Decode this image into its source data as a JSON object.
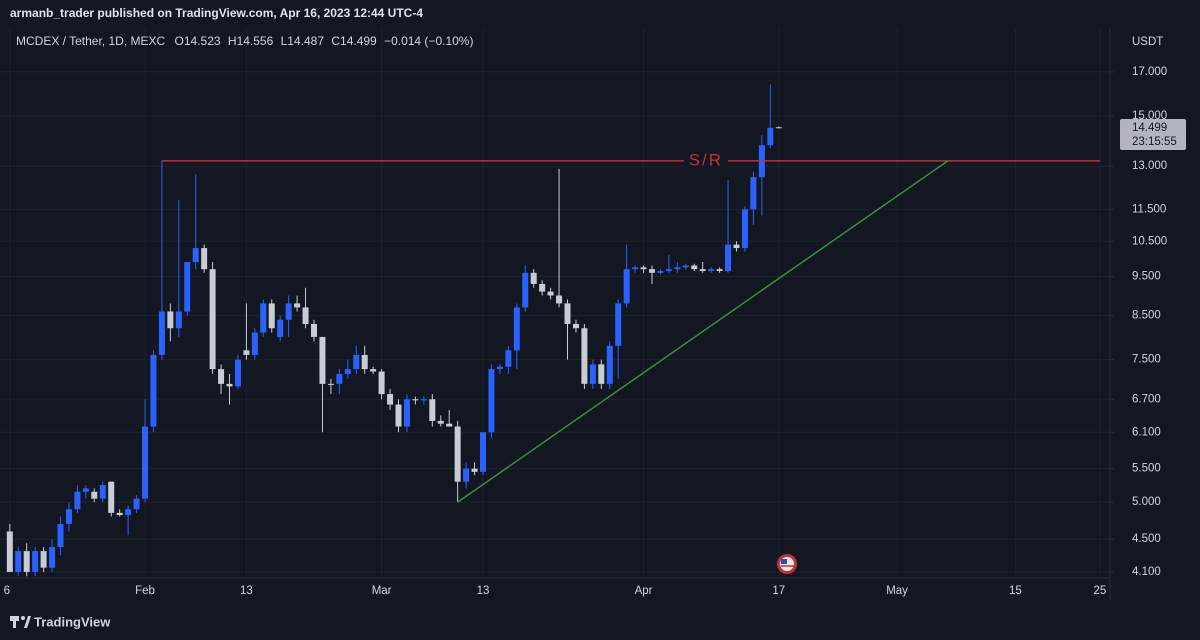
{
  "attribution": "armanb_trader published on TradingView.com, Apr 16, 2023 12:44 UTC-4",
  "header": {
    "symbol": "MCDEX / Tether, 1D, MEXC",
    "ohlc_labels": [
      "O",
      "H",
      "L",
      "C"
    ],
    "change": "−0.014 (−0.10%)"
  },
  "currency": "USDT",
  "countdown": "23:15:55",
  "footer": "TradingView",
  "chart_data": {
    "type": "candlestick",
    "log_scale": true,
    "grid": true,
    "up_color": "#2962ff",
    "down_color": "#c9ccd4",
    "x": [
      16,
      17,
      18,
      19,
      20,
      21,
      22,
      23,
      24,
      25,
      26,
      27,
      28,
      29,
      30,
      31,
      32,
      33,
      34,
      35,
      36,
      37,
      38,
      39,
      40,
      41,
      42,
      43,
      44,
      45,
      46,
      47,
      48,
      49,
      50,
      51,
      52,
      53,
      54,
      55,
      56,
      57,
      58,
      59,
      60,
      61,
      62,
      63,
      64,
      65,
      66,
      67,
      68,
      69,
      70,
      71,
      72,
      73,
      74,
      75,
      76,
      77,
      78,
      79,
      80,
      81,
      82,
      83,
      84,
      85,
      86,
      87,
      88,
      89,
      90,
      91,
      92,
      93,
      94,
      95,
      96,
      97,
      98,
      99,
      100,
      101,
      102,
      103,
      104,
      105,
      106,
      107
    ],
    "open": [
      4.6,
      4.1,
      4.35,
      4.1,
      4.35,
      4.15,
      4.4,
      4.7,
      4.9,
      5.15,
      5.15,
      5.05,
      5.3,
      4.85,
      4.82,
      4.9,
      5.05,
      6.2,
      7.6,
      8.6,
      8.2,
      8.6,
      9.9,
      10.3,
      9.7,
      7.3,
      7.0,
      6.95,
      7.7,
      7.6,
      8.1,
      8.8,
      8.0,
      8.4,
      8.8,
      8.7,
      8.3,
      8.0,
      7.0,
      7.0,
      7.2,
      7.3,
      7.6,
      7.3,
      7.25,
      6.8,
      6.6,
      6.2,
      6.7,
      6.68,
      6.7,
      6.3,
      6.25,
      6.2,
      5.3,
      5.5,
      5.45,
      6.1,
      7.3,
      7.35,
      7.7,
      8.7,
      9.6,
      9.3,
      9.1,
      9.0,
      8.8,
      8.3,
      8.2,
      7.0,
      7.4,
      7.0,
      7.8,
      8.8,
      9.7,
      9.75,
      9.7,
      9.6,
      9.65,
      9.7,
      9.75,
      9.8,
      9.7,
      9.65,
      9.7,
      9.65,
      10.4,
      10.3,
      11.5,
      12.6,
      13.8,
      14.523
    ],
    "high": [
      4.7,
      4.4,
      4.45,
      4.4,
      4.4,
      4.5,
      4.8,
      5.0,
      5.25,
      5.25,
      5.2,
      5.3,
      5.3,
      4.9,
      4.95,
      5.1,
      6.7,
      7.7,
      13.2,
      8.8,
      11.8,
      9.9,
      12.7,
      10.4,
      9.9,
      7.4,
      7.2,
      7.6,
      8.8,
      8.2,
      8.9,
      8.9,
      8.5,
      9.0,
      9.0,
      9.2,
      8.4,
      8.0,
      7.1,
      7.3,
      7.5,
      7.8,
      7.8,
      7.35,
      7.3,
      6.9,
      6.7,
      6.8,
      6.75,
      6.75,
      6.8,
      6.4,
      6.5,
      6.3,
      5.6,
      5.6,
      6.1,
      7.4,
      7.4,
      7.8,
      8.8,
      9.8,
      9.7,
      9.4,
      9.2,
      12.9,
      8.9,
      8.4,
      8.3,
      7.5,
      7.5,
      7.9,
      8.9,
      10.4,
      9.8,
      9.8,
      9.8,
      9.7,
      10.1,
      9.9,
      9.85,
      9.85,
      9.9,
      9.75,
      9.75,
      12.5,
      10.5,
      11.6,
      12.8,
      14.2,
      16.4,
      14.556
    ],
    "low": [
      4.1,
      4.05,
      4.05,
      4.05,
      4.1,
      4.1,
      4.3,
      4.6,
      4.85,
      5.05,
      5.0,
      5.0,
      4.8,
      4.8,
      4.55,
      4.85,
      5.0,
      6.1,
      7.5,
      7.9,
      8.0,
      8.5,
      9.7,
      9.6,
      7.2,
      6.8,
      6.6,
      6.9,
      7.5,
      7.5,
      8.0,
      8.1,
      7.9,
      8.0,
      8.6,
      8.2,
      7.9,
      6.1,
      6.8,
      6.8,
      7.1,
      7.2,
      7.2,
      7.2,
      6.7,
      6.5,
      6.1,
      6.1,
      6.6,
      6.6,
      6.2,
      6.2,
      6.2,
      5.0,
      5.2,
      5.4,
      5.4,
      6.0,
      7.2,
      7.2,
      7.3,
      8.6,
      9.2,
      9.0,
      8.9,
      8.7,
      7.5,
      8.1,
      6.9,
      6.9,
      6.9,
      6.9,
      7.1,
      8.7,
      9.6,
      9.6,
      9.3,
      9.55,
      9.6,
      9.6,
      9.7,
      9.65,
      9.6,
      9.6,
      9.6,
      9.6,
      10.2,
      10.2,
      11.0,
      11.3,
      13.7,
      14.487
    ],
    "close": [
      4.1,
      4.35,
      4.1,
      4.35,
      4.15,
      4.4,
      4.7,
      4.9,
      5.15,
      5.2,
      5.05,
      5.25,
      4.85,
      4.82,
      4.9,
      5.05,
      6.2,
      7.6,
      8.6,
      8.2,
      8.6,
      9.9,
      10.3,
      9.7,
      7.3,
      7.0,
      6.95,
      7.5,
      7.6,
      8.1,
      8.8,
      8.2,
      8.4,
      8.8,
      8.7,
      8.3,
      8.0,
      7.0,
      6.98,
      7.2,
      7.3,
      7.6,
      7.3,
      7.25,
      6.8,
      6.6,
      6.2,
      6.7,
      6.68,
      6.7,
      6.3,
      6.25,
      6.2,
      5.3,
      5.5,
      5.45,
      6.1,
      7.3,
      7.35,
      7.7,
      8.7,
      9.6,
      9.3,
      9.1,
      9.0,
      8.8,
      8.3,
      8.2,
      7.0,
      7.4,
      7.0,
      7.8,
      8.8,
      9.7,
      9.75,
      9.7,
      9.6,
      9.65,
      9.7,
      9.75,
      9.8,
      9.7,
      9.65,
      9.7,
      9.65,
      10.4,
      10.3,
      11.5,
      12.6,
      13.8,
      14.5,
      14.499
    ],
    "xlim": [
      14.84,
      146.2
    ],
    "ylim": [
      4.03,
      19.26
    ],
    "xticks": [
      {
        "value": 16,
        "label": "6"
      },
      {
        "value": 32,
        "label": "Feb"
      },
      {
        "value": 44,
        "label": "13"
      },
      {
        "value": 60,
        "label": "Mar"
      },
      {
        "value": 72,
        "label": "13"
      },
      {
        "value": 91,
        "label": "Apr"
      },
      {
        "value": 107,
        "label": "17"
      },
      {
        "value": 121,
        "label": "May"
      },
      {
        "value": 135,
        "label": "15"
      },
      {
        "value": 145,
        "label": "25"
      }
    ],
    "yticks": [
      {
        "value": 4.1,
        "label": "4.100"
      },
      {
        "value": 4.5,
        "label": "4.500"
      },
      {
        "value": 5,
        "label": "5.000"
      },
      {
        "value": 5.5,
        "label": "5.500"
      },
      {
        "value": 6.1,
        "label": "6.100"
      },
      {
        "value": 6.7,
        "label": "6.700"
      },
      {
        "value": 7.5,
        "label": "7.500"
      },
      {
        "value": 8.5,
        "label": "8.500"
      },
      {
        "value": 9.5,
        "label": "9.500"
      },
      {
        "value": 10.5,
        "label": "10.500"
      },
      {
        "value": 11.5,
        "label": "11.500"
      },
      {
        "value": 13,
        "label": "13.000"
      },
      {
        "value": 15,
        "label": "15.000"
      },
      {
        "value": 17,
        "label": "17.000"
      }
    ],
    "annotations": [
      {
        "label": "S/R",
        "color": "#c2303b",
        "x": [
          34,
          145
        ],
        "y": [
          13.2,
          13.2
        ]
      },
      {
        "color": "#388e3c",
        "x": [
          69,
          127
        ],
        "y": [
          5.0,
          13.2
        ]
      }
    ]
  }
}
